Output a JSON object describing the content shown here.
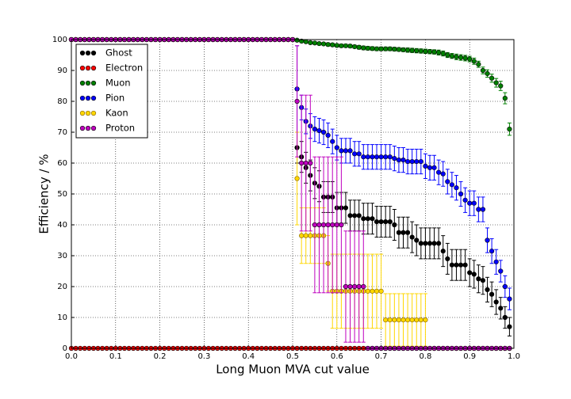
{
  "chart_data": {
    "type": "errorbar",
    "x_label": "Long Muon MVA cut value",
    "y_label": "Efficiency / %",
    "xlim": [
      0,
      1
    ],
    "ylim": [
      0,
      100
    ],
    "xticks": [
      {
        "value": 0,
        "label": "0.0"
      },
      0.1,
      0.2,
      0.3,
      0.4,
      0.5,
      0.6,
      0.7,
      0.8,
      0.9,
      {
        "value": 1,
        "label": "1.0"
      }
    ],
    "yticks": [
      0,
      10,
      20,
      30,
      40,
      50,
      60,
      70,
      80,
      90,
      100
    ],
    "grid": true,
    "legend": "upper left",
    "x": [
      0,
      0.01,
      0.02,
      0.03,
      0.04,
      0.05,
      0.06,
      0.07,
      0.08,
      0.09,
      0.1,
      0.11,
      0.12,
      0.13,
      0.14,
      0.15,
      0.16,
      0.17,
      0.18,
      0.19,
      0.2,
      0.21,
      0.22,
      0.23,
      0.24,
      0.25,
      0.26,
      0.27,
      0.28,
      0.29,
      0.3,
      0.31,
      0.32,
      0.33,
      0.34,
      0.35,
      0.36,
      0.37,
      0.38,
      0.39,
      0.4,
      0.41,
      0.42,
      0.43,
      0.44,
      0.45,
      0.46,
      0.47,
      0.48,
      0.49,
      0.5,
      0.51,
      0.52,
      0.53,
      0.54,
      0.55,
      0.56,
      0.57,
      0.58,
      0.59,
      0.6,
      0.61,
      0.62,
      0.63,
      0.64,
      0.65,
      0.66,
      0.67,
      0.68,
      0.69,
      0.7,
      0.71,
      0.72,
      0.73,
      0.74,
      0.75,
      0.76,
      0.77,
      0.78,
      0.79,
      0.8,
      0.81,
      0.82,
      0.83,
      0.84,
      0.85,
      0.86,
      0.87,
      0.88,
      0.89,
      0.9,
      0.91,
      0.92,
      0.93,
      0.94,
      0.95,
      0.96,
      0.97,
      0.98,
      0.99
    ],
    "series": [
      {
        "name": "Ghost",
        "color": "#000000",
        "values": [
          100,
          100,
          100,
          100,
          100,
          100,
          100,
          100,
          100,
          100,
          100,
          100,
          100,
          100,
          100,
          100,
          100,
          100,
          100,
          100,
          100,
          100,
          100,
          100,
          100,
          100,
          100,
          100,
          100,
          100,
          100,
          100,
          100,
          100,
          100,
          100,
          100,
          100,
          100,
          100,
          100,
          100,
          100,
          100,
          100,
          100,
          100,
          100,
          100,
          100,
          100,
          65,
          62,
          58.5,
          56,
          53.5,
          52.5,
          49,
          49,
          49,
          45.5,
          45.5,
          45.5,
          43,
          43,
          43,
          42,
          42,
          42,
          41,
          41,
          41,
          41,
          40,
          37.5,
          37.5,
          37.5,
          36,
          35,
          34,
          34,
          34,
          34,
          34,
          31.5,
          29,
          27,
          27,
          27,
          27,
          24.5,
          24,
          22.5,
          22,
          19,
          17.5,
          15,
          13,
          10,
          7
        ],
        "errors": [
          0,
          0,
          0,
          0,
          0,
          0,
          0,
          0,
          0,
          0,
          0,
          0,
          0,
          0,
          0,
          0,
          0,
          0,
          0,
          0,
          0,
          0,
          0,
          0,
          0,
          0,
          0,
          0,
          0,
          0,
          0,
          0,
          0,
          0,
          0,
          0,
          0,
          0,
          0,
          0,
          0,
          0,
          0,
          0,
          0,
          0,
          0,
          0,
          0,
          0,
          0,
          5,
          5,
          5,
          5,
          5,
          5,
          5,
          5,
          5,
          5,
          5,
          5,
          5,
          5,
          5,
          5,
          5,
          5,
          5,
          5,
          5,
          5,
          5,
          5,
          5,
          5,
          5,
          5,
          5,
          5,
          5,
          5,
          5,
          5,
          5,
          5,
          5,
          5,
          5,
          4.5,
          4.5,
          4.5,
          4.5,
          4,
          4,
          4,
          3.5,
          3.5,
          3
        ]
      },
      {
        "name": "Electron",
        "color": "#ff0000",
        "values": [
          0,
          0,
          0,
          0,
          0,
          0,
          0,
          0,
          0,
          0,
          0,
          0,
          0,
          0,
          0,
          0,
          0,
          0,
          0,
          0,
          0,
          0,
          0,
          0,
          0,
          0,
          0,
          0,
          0,
          0,
          0,
          0,
          0,
          0,
          0,
          0,
          0,
          0,
          0,
          0,
          0,
          0,
          0,
          0,
          0,
          0,
          0,
          0,
          0,
          0,
          0,
          0,
          0,
          0,
          0,
          0,
          0,
          0,
          0,
          0,
          0,
          0,
          0,
          0,
          0,
          0,
          0,
          0,
          0,
          0,
          0,
          0,
          0,
          0,
          0,
          0,
          0,
          0,
          0,
          0,
          0,
          0,
          0,
          0,
          0,
          0,
          0,
          0,
          0,
          0,
          0,
          0,
          0,
          0,
          0,
          0,
          0,
          0,
          0,
          0
        ]
      },
      {
        "name": "Muon",
        "color": "#008000",
        "values": [
          100,
          100,
          100,
          100,
          100,
          100,
          100,
          100,
          100,
          100,
          100,
          100,
          100,
          100,
          100,
          100,
          100,
          100,
          100,
          100,
          100,
          100,
          100,
          100,
          100,
          100,
          100,
          100,
          100,
          100,
          100,
          100,
          100,
          100,
          100,
          100,
          100,
          100,
          100,
          100,
          100,
          100,
          100,
          100,
          100,
          100,
          100,
          100,
          100,
          100,
          100,
          99.8,
          99.5,
          99.3,
          99,
          98.9,
          98.7,
          98.6,
          98.4,
          98.3,
          98.1,
          98,
          98,
          97.9,
          97.7,
          97.5,
          97.3,
          97.2,
          97.1,
          97,
          97,
          97,
          97,
          96.9,
          96.8,
          96.7,
          96.6,
          96.5,
          96.4,
          96.3,
          96.2,
          96.1,
          96,
          95.8,
          95.5,
          95,
          94.7,
          94.4,
          94.2,
          94,
          93.7,
          93,
          92,
          90,
          89,
          87.5,
          86,
          85,
          81,
          71
        ],
        "errors": [
          0,
          0,
          0,
          0,
          0,
          0,
          0,
          0,
          0,
          0,
          0,
          0,
          0,
          0,
          0,
          0,
          0,
          0,
          0,
          0,
          0,
          0,
          0,
          0,
          0,
          0,
          0,
          0,
          0,
          0,
          0,
          0,
          0,
          0,
          0,
          0,
          0,
          0,
          0,
          0,
          0,
          0,
          0,
          0,
          0,
          0,
          0,
          0,
          0,
          0,
          0,
          0.2,
          0.3,
          0.3,
          0.4,
          0.4,
          0.4,
          0.4,
          0.5,
          0.5,
          0.5,
          0.5,
          0.5,
          0.5,
          0.5,
          0.6,
          0.6,
          0.6,
          0.6,
          0.6,
          0.6,
          0.6,
          0.6,
          0.6,
          0.6,
          0.6,
          0.7,
          0.7,
          0.7,
          0.7,
          0.7,
          0.7,
          0.7,
          0.8,
          0.8,
          0.8,
          0.8,
          0.9,
          0.9,
          0.9,
          0.9,
          1,
          1,
          1.1,
          1.2,
          1.3,
          1.4,
          1.5,
          1.8,
          2
        ]
      },
      {
        "name": "Pion",
        "color": "#0000ff",
        "values": [
          100,
          100,
          100,
          100,
          100,
          100,
          100,
          100,
          100,
          100,
          100,
          100,
          100,
          100,
          100,
          100,
          100,
          100,
          100,
          100,
          100,
          100,
          100,
          100,
          100,
          100,
          100,
          100,
          100,
          100,
          100,
          100,
          100,
          100,
          100,
          100,
          100,
          100,
          100,
          100,
          100,
          100,
          100,
          100,
          100,
          100,
          100,
          100,
          100,
          100,
          100,
          84,
          78,
          73.5,
          72,
          71,
          70.5,
          70,
          69,
          67,
          65,
          64,
          64,
          64,
          63,
          63,
          62,
          62,
          62,
          62,
          62,
          62,
          62,
          61.5,
          61,
          61,
          60.5,
          60.5,
          60.5,
          60.5,
          59,
          58.5,
          58.5,
          57,
          56.5,
          54,
          53,
          52,
          50,
          48,
          47,
          47,
          45,
          45,
          35,
          31.5,
          28,
          25,
          20,
          16
        ],
        "errors": [
          0,
          0,
          0,
          0,
          0,
          0,
          0,
          0,
          0,
          0,
          0,
          0,
          0,
          0,
          0,
          0,
          0,
          0,
          0,
          0,
          0,
          0,
          0,
          0,
          0,
          0,
          0,
          0,
          0,
          0,
          0,
          0,
          0,
          0,
          0,
          0,
          0,
          0,
          0,
          0,
          0,
          0,
          0,
          0,
          0,
          0,
          0,
          0,
          0,
          0,
          0,
          14,
          4,
          4,
          4,
          4,
          4,
          4,
          4,
          4,
          4,
          4,
          4,
          4,
          4,
          4,
          4,
          4,
          4,
          4,
          4,
          4,
          4,
          4,
          4,
          4,
          4,
          4,
          4,
          4,
          4,
          4,
          4,
          4,
          4,
          4,
          4,
          4,
          4,
          4,
          4,
          4,
          4,
          4,
          4,
          4,
          4,
          3.5,
          3.5,
          3.5
        ]
      },
      {
        "name": "Kaon",
        "color": "#ffd700",
        "values": [
          100,
          100,
          100,
          100,
          100,
          100,
          100,
          100,
          100,
          100,
          100,
          100,
          100,
          100,
          100,
          100,
          100,
          100,
          100,
          100,
          100,
          100,
          100,
          100,
          100,
          100,
          100,
          100,
          100,
          100,
          100,
          100,
          100,
          100,
          100,
          100,
          100,
          100,
          100,
          100,
          100,
          100,
          100,
          100,
          100,
          100,
          100,
          100,
          100,
          100,
          100,
          55,
          36.5,
          36.5,
          36.5,
          36.5,
          36.5,
          36.5,
          27.5,
          18.5,
          18.5,
          18.5,
          18.5,
          18.5,
          18.5,
          18.5,
          18.5,
          18.5,
          18.5,
          18.5,
          18.5,
          9.2,
          9.2,
          9.2,
          9.2,
          9.2,
          9.2,
          9.2,
          9.2,
          9.2,
          9.2,
          0,
          0,
          0,
          0,
          0,
          0,
          0,
          0,
          0,
          0,
          0,
          0,
          0,
          0,
          0,
          0,
          0,
          0,
          0
        ],
        "errors": [
          0,
          0,
          0,
          0,
          0,
          0,
          0,
          0,
          0,
          0,
          0,
          0,
          0,
          0,
          0,
          0,
          0,
          0,
          0,
          0,
          0,
          0,
          0,
          0,
          0,
          0,
          0,
          0,
          0,
          0,
          0,
          0,
          0,
          0,
          0,
          0,
          0,
          0,
          0,
          0,
          0,
          0,
          0,
          0,
          0,
          0,
          0,
          0,
          0,
          0,
          0,
          15,
          9,
          9,
          9,
          9,
          9,
          9,
          9,
          12,
          12,
          12,
          12,
          12,
          12,
          12,
          12,
          12,
          12,
          12,
          12,
          8.5,
          8.5,
          8.5,
          8.5,
          8.5,
          8.5,
          8.5,
          8.5,
          8.5,
          8.5,
          0,
          0,
          0,
          0,
          0,
          0,
          0,
          0,
          0,
          0,
          0,
          0,
          0,
          0,
          0,
          0,
          0,
          0,
          0
        ]
      },
      {
        "name": "Proton",
        "color": "#bf00bf",
        "values": [
          100,
          100,
          100,
          100,
          100,
          100,
          100,
          100,
          100,
          100,
          100,
          100,
          100,
          100,
          100,
          100,
          100,
          100,
          100,
          100,
          100,
          100,
          100,
          100,
          100,
          100,
          100,
          100,
          100,
          100,
          100,
          100,
          100,
          100,
          100,
          100,
          100,
          100,
          100,
          100,
          100,
          100,
          100,
          100,
          100,
          100,
          100,
          100,
          100,
          100,
          100,
          80,
          60,
          60,
          60,
          40,
          40,
          40,
          40,
          40,
          40,
          40,
          20,
          20,
          20,
          20,
          20,
          0,
          0,
          0,
          0,
          0,
          0,
          0,
          0,
          0,
          0,
          0,
          0,
          0,
          0,
          0,
          0,
          0,
          0,
          0,
          0,
          0,
          0,
          0,
          0,
          0,
          0,
          0,
          0,
          0,
          0,
          0,
          0,
          0
        ],
        "errors": [
          0,
          0,
          0,
          0,
          0,
          0,
          0,
          0,
          0,
          0,
          0,
          0,
          0,
          0,
          0,
          0,
          0,
          0,
          0,
          0,
          0,
          0,
          0,
          0,
          0,
          0,
          0,
          0,
          0,
          0,
          0,
          0,
          0,
          0,
          0,
          0,
          0,
          0,
          0,
          0,
          0,
          0,
          0,
          0,
          0,
          0,
          0,
          0,
          0,
          0,
          0,
          18,
          22,
          22,
          22,
          22,
          22,
          22,
          22,
          22,
          22,
          22,
          18,
          18,
          18,
          18,
          18,
          0,
          0,
          0,
          0,
          0,
          0,
          0,
          0,
          0,
          0,
          0,
          0,
          0,
          0,
          0,
          0,
          0,
          0,
          0,
          0,
          0,
          0,
          0,
          0,
          0,
          0,
          0,
          0,
          0,
          0,
          0,
          0,
          0
        ]
      }
    ]
  }
}
